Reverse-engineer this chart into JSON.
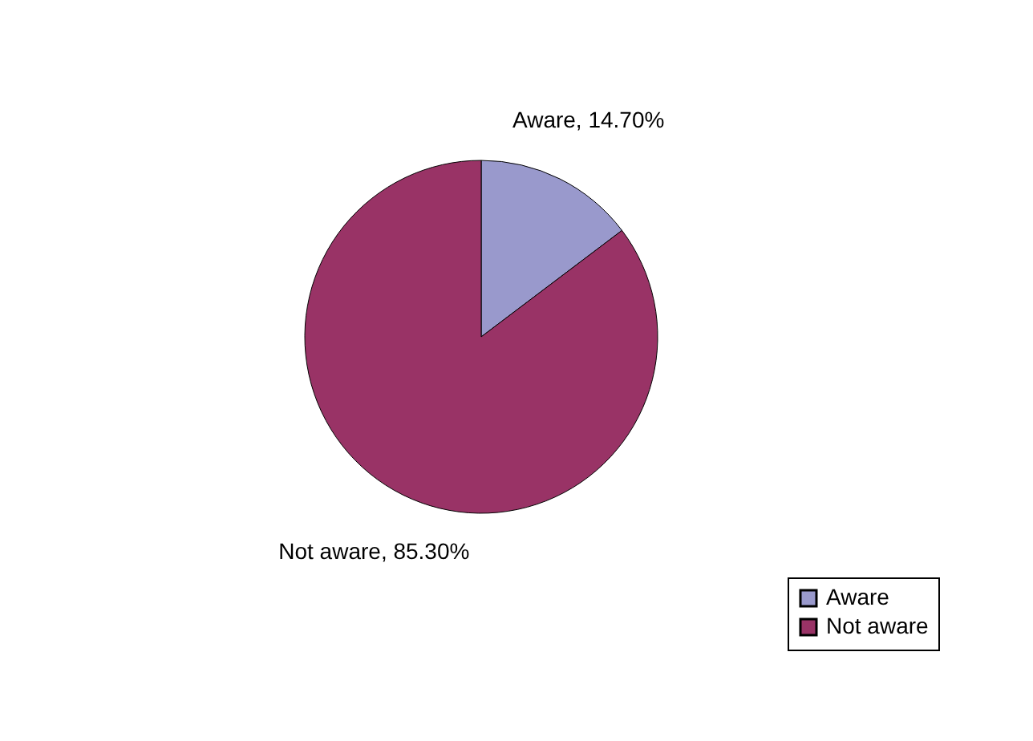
{
  "chart_data": {
    "type": "pie",
    "categories": [
      "Aware",
      "Not aware"
    ],
    "values": [
      14.7,
      85.3
    ],
    "colors": [
      "#9999cc",
      "#993366"
    ],
    "value_labels": [
      "Aware, 14.70%",
      "Not aware, 85.30%"
    ],
    "legend": "bottom right"
  }
}
